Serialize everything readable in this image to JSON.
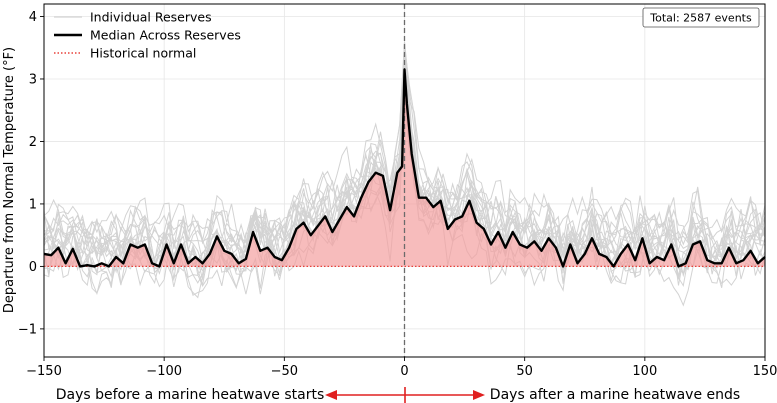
{
  "chart_data": {
    "type": "line",
    "ylabel": "Departure from Normal Temperature (°F)",
    "xlim": [
      -150,
      150
    ],
    "ylim": [
      -1.45,
      4.2
    ],
    "x_ticks": [
      -150,
      -100,
      -50,
      0,
      50,
      100,
      150
    ],
    "x_tick_labels": [
      "−150",
      "−100",
      "−50",
      "0",
      "50",
      "100",
      "150"
    ],
    "y_ticks": [
      -1,
      0,
      1,
      2,
      3,
      4
    ],
    "y_tick_labels": [
      "−1",
      "0",
      "1",
      "2",
      "3",
      "4"
    ],
    "grid": true,
    "legend_position": "top-left",
    "legend": [
      {
        "label": "Individual Reserves",
        "color": "#d3d3d3",
        "style": "solid-thin"
      },
      {
        "label": "Median Across Reserves",
        "color": "#000000",
        "style": "solid-thick"
      },
      {
        "label": "Historical normal",
        "color": "#e8413a",
        "style": "dotted"
      }
    ],
    "annotation": "Total: 2587 events",
    "vline_x": 0,
    "median_series": {
      "name": "Median Across Reserves",
      "x": [
        -150,
        -147,
        -144,
        -141,
        -138,
        -135,
        -132,
        -129,
        -126,
        -123,
        -120,
        -117,
        -114,
        -111,
        -108,
        -105,
        -102,
        -99,
        -96,
        -93,
        -90,
        -87,
        -84,
        -81,
        -78,
        -75,
        -72,
        -69,
        -66,
        -63,
        -60,
        -57,
        -54,
        -51,
        -48,
        -45,
        -42,
        -39,
        -36,
        -33,
        -30,
        -27,
        -24,
        -21,
        -18,
        -15,
        -12,
        -9,
        -6,
        -3,
        -1,
        0,
        1,
        2,
        3,
        6,
        9,
        12,
        15,
        18,
        21,
        24,
        27,
        30,
        33,
        36,
        39,
        42,
        45,
        48,
        51,
        54,
        57,
        60,
        63,
        66,
        69,
        72,
        75,
        78,
        81,
        84,
        87,
        90,
        93,
        96,
        99,
        102,
        105,
        108,
        111,
        114,
        117,
        120,
        123,
        126,
        129,
        132,
        135,
        138,
        141,
        144,
        147,
        150
      ],
      "y": [
        0.2,
        0.18,
        0.3,
        0.05,
        0.28,
        0.0,
        0.02,
        0.0,
        0.05,
        0.0,
        0.15,
        0.05,
        0.35,
        0.3,
        0.35,
        0.05,
        0.0,
        0.35,
        0.05,
        0.35,
        0.05,
        0.15,
        0.05,
        0.2,
        0.48,
        0.25,
        0.2,
        0.05,
        0.12,
        0.55,
        0.25,
        0.3,
        0.15,
        0.1,
        0.3,
        0.6,
        0.7,
        0.5,
        0.65,
        0.8,
        0.55,
        0.75,
        0.95,
        0.8,
        1.1,
        1.35,
        1.5,
        1.45,
        0.9,
        1.5,
        1.6,
        3.15,
        2.6,
        2.2,
        1.8,
        1.1,
        1.1,
        0.95,
        1.05,
        0.6,
        0.75,
        0.8,
        1.05,
        0.7,
        0.6,
        0.35,
        0.55,
        0.3,
        0.55,
        0.35,
        0.3,
        0.4,
        0.25,
        0.45,
        0.3,
        0.0,
        0.35,
        0.05,
        0.2,
        0.45,
        0.2,
        0.15,
        0.0,
        0.2,
        0.35,
        0.1,
        0.45,
        0.05,
        0.15,
        0.1,
        0.35,
        0.0,
        0.05,
        0.35,
        0.4,
        0.1,
        0.05,
        0.05,
        0.3,
        0.05,
        0.1,
        0.25,
        0.05,
        0.15
      ]
    }
  },
  "bottom_axis": {
    "left_text": "Days before a marine heatwave starts",
    "right_text": "Days after a marine heatwave ends"
  },
  "colors": {
    "median_line": "#000000",
    "fill": "#f4a0a0",
    "individual": "#d3d3d3",
    "normal_line": "#e8413a",
    "arrow": "#e02020",
    "zero_vline": "#6b6b6b"
  }
}
